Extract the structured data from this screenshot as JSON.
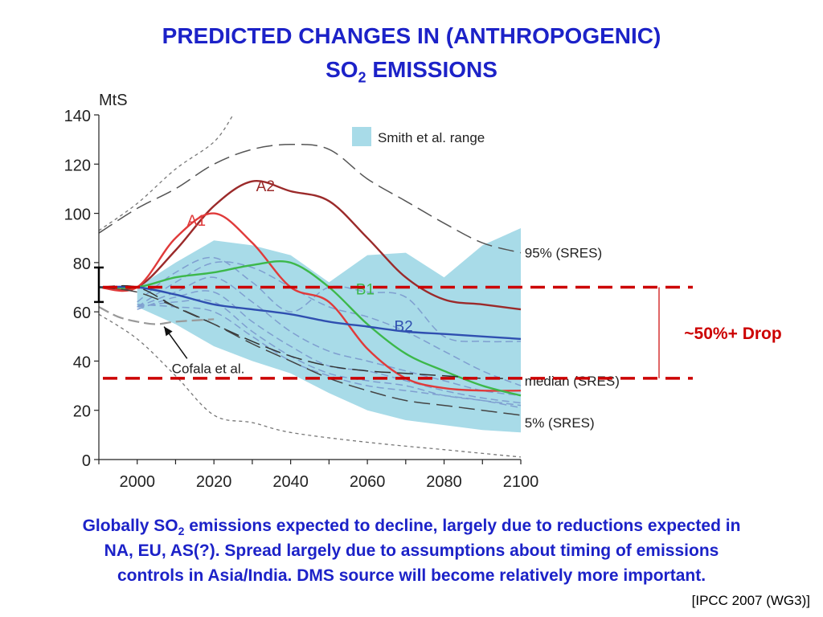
{
  "slide": {
    "title_line1": "PREDICTED CHANGES IN (ANTHROPOGENIC)",
    "title_line2_pre": "SO",
    "title_line2_sub": "2",
    "title_line2_post": " EMISSIONS",
    "caption_line1_pre": "Globally SO",
    "caption_line1_sub": "2",
    "caption_line1_post": " emissions expected to decline, largely due to reductions expected in",
    "caption_line2": "NA, EU, AS(?).  Spread largely due to assumptions about timing of emissions",
    "caption_line3": "controls in Asia/India.  DMS source will become relatively more important.",
    "source": "[IPCC 2007 (WG3)]",
    "drop_label": "~50%+ Drop"
  },
  "colors": {
    "title": "#1c22c8",
    "drop": "#cc0000",
    "band": "#a8dbe8",
    "A2": "#9b2a2a",
    "A1": "#e03a3a",
    "B1": "#3cb84a",
    "B2": "#2f4fb0",
    "scenario_dash": "#7f9fd0"
  },
  "chart_data": {
    "type": "line",
    "ylabel": "MtS",
    "xlim": [
      1990,
      2100
    ],
    "ylim": [
      0,
      140
    ],
    "xticks": [
      2000,
      2020,
      2040,
      2060,
      2080,
      2100
    ],
    "yticks": [
      0,
      20,
      40,
      60,
      80,
      100,
      120,
      140
    ],
    "legend": {
      "label": "Smith et al. range",
      "position": "top-right"
    },
    "band": {
      "name": "Smith et al. range",
      "x": [
        2000,
        2010,
        2020,
        2030,
        2040,
        2050,
        2060,
        2070,
        2080,
        2090,
        2100
      ],
      "upper": [
        70,
        80,
        89,
        87,
        83,
        72,
        83,
        84,
        74,
        87,
        94
      ],
      "lower": [
        62,
        55,
        46,
        40,
        35,
        27,
        20,
        16,
        14,
        12,
        11
      ]
    },
    "series": [
      {
        "name": "A2",
        "x": [
          1990,
          2000,
          2010,
          2020,
          2030,
          2040,
          2050,
          2060,
          2070,
          2080,
          2090,
          2100
        ],
        "y": [
          70,
          70,
          85,
          103,
          113,
          109,
          105,
          90,
          74,
          65,
          63,
          61
        ]
      },
      {
        "name": "A1",
        "x": [
          1990,
          2000,
          2010,
          2020,
          2030,
          2040,
          2050,
          2060,
          2070,
          2080,
          2090,
          2100
        ],
        "y": [
          70,
          70,
          90,
          100,
          88,
          70,
          64,
          45,
          33,
          29,
          28,
          28
        ]
      },
      {
        "name": "B1",
        "x": [
          1990,
          2000,
          2010,
          2020,
          2030,
          2040,
          2050,
          2060,
          2070,
          2080,
          2090,
          2100
        ],
        "y": [
          70,
          70,
          74,
          76,
          79,
          80,
          70,
          55,
          43,
          36,
          30,
          26
        ]
      },
      {
        "name": "B2",
        "x": [
          1990,
          2000,
          2010,
          2020,
          2030,
          2040,
          2050,
          2060,
          2070,
          2080,
          2090,
          2100
        ],
        "y": [
          70,
          70,
          67,
          63,
          61,
          59,
          56,
          54,
          52,
          51,
          50,
          49
        ]
      },
      {
        "name": "95% (SRES)",
        "x": [
          1990,
          2000,
          2010,
          2020,
          2030,
          2040,
          2050,
          2060,
          2070,
          2080,
          2090,
          2100
        ],
        "y": [
          92,
          102,
          110,
          120,
          126,
          128,
          126,
          114,
          105,
          96,
          88,
          84
        ]
      },
      {
        "name": "median (SRES)",
        "x": [
          1990,
          2000,
          2010,
          2020,
          2030,
          2040,
          2050,
          2060,
          2070,
          2080,
          2090,
          2100
        ],
        "y": [
          70,
          70,
          62,
          55,
          48,
          42,
          38,
          36,
          35,
          34,
          33,
          33
        ]
      },
      {
        "name": "5% (SRES)",
        "x": [
          1990,
          2000,
          2010,
          2020,
          2030,
          2040,
          2050,
          2060,
          2070,
          2080,
          2090,
          2100
        ],
        "y": [
          70,
          68,
          62,
          55,
          47,
          40,
          33,
          28,
          24,
          22,
          20,
          18
        ]
      },
      {
        "name": "Cofala et al.",
        "x": [
          1990,
          1995,
          2000,
          2005,
          2010,
          2020
        ],
        "y": [
          62,
          58,
          56,
          55,
          56,
          57
        ]
      }
    ],
    "scenario_dashes": [
      {
        "x": [
          2000,
          2010,
          2020,
          2030,
          2040,
          2050,
          2060,
          2070,
          2080,
          2090,
          2100
        ],
        "y": [
          62,
          72,
          80,
          78,
          70,
          62,
          58,
          52,
          44,
          36,
          30
        ]
      },
      {
        "x": [
          2000,
          2010,
          2020,
          2030,
          2040,
          2050,
          2060,
          2070,
          2080,
          2090,
          2100
        ],
        "y": [
          64,
          76,
          82,
          72,
          60,
          70,
          68,
          66,
          50,
          48,
          48
        ]
      },
      {
        "x": [
          2000,
          2010,
          2020,
          2030,
          2040,
          2050,
          2060,
          2070,
          2080,
          2090,
          2100
        ],
        "y": [
          62,
          68,
          74,
          64,
          52,
          44,
          40,
          36,
          32,
          28,
          26
        ]
      },
      {
        "x": [
          2000,
          2010,
          2020,
          2030,
          2040,
          2050,
          2060,
          2070,
          2080,
          2090,
          2100
        ],
        "y": [
          61,
          66,
          68,
          56,
          46,
          38,
          36,
          32,
          28,
          25,
          23
        ]
      },
      {
        "x": [
          2000,
          2010,
          2020,
          2030,
          2040,
          2050,
          2060,
          2070,
          2080,
          2090,
          2100
        ],
        "y": [
          62,
          64,
          64,
          52,
          42,
          35,
          32,
          30,
          26,
          24,
          22
        ]
      },
      {
        "x": [
          2000,
          2010,
          2020,
          2030,
          2040,
          2050,
          2060,
          2070,
          2080,
          2090,
          2100
        ],
        "y": [
          63,
          62,
          60,
          50,
          40,
          34,
          30,
          28,
          26,
          24,
          21
        ]
      }
    ],
    "envelope": [
      {
        "x": [
          1990,
          2000,
          2010,
          2020,
          2025
        ],
        "y": [
          93,
          104,
          118,
          129,
          140
        ]
      },
      {
        "x": [
          1990,
          2000,
          2010,
          2020,
          2030,
          2040,
          2060,
          2080,
          2100
        ],
        "y": [
          59,
          49,
          34,
          18,
          15,
          11,
          7,
          4,
          1
        ]
      }
    ],
    "drop_lines": [
      70,
      33
    ],
    "annotations": [
      {
        "text": "A2",
        "x": 2031,
        "y": 111,
        "series": "A2"
      },
      {
        "text": "A1",
        "x": 2013,
        "y": 97,
        "series": "A1"
      },
      {
        "text": "B1",
        "x": 2057,
        "y": 69,
        "series": "B1"
      },
      {
        "text": "B2",
        "x": 2067,
        "y": 54,
        "series": "B2"
      },
      {
        "text": "95% (SRES)",
        "x": 2101,
        "y": 84,
        "series": "95% (SRES)"
      },
      {
        "text": "median (SRES)",
        "x": 2101,
        "y": 32,
        "series": "median (SRES)"
      },
      {
        "text": "5% (SRES)",
        "x": 2101,
        "y": 15,
        "series": "5% (SRES)"
      },
      {
        "text": "Cofala et al.",
        "x": 2009,
        "y": 37,
        "series": "Cofala et al."
      }
    ]
  }
}
